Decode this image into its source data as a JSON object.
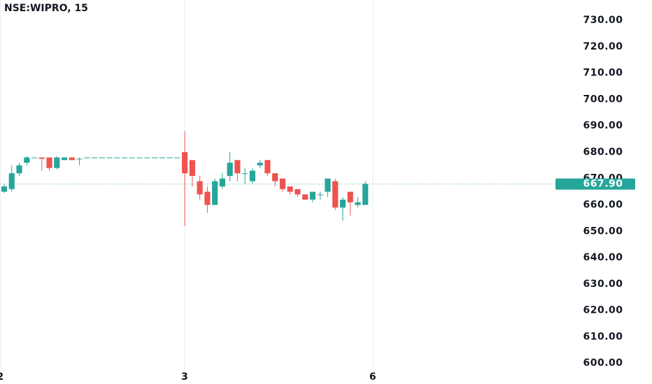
{
  "chart_data": {
    "type": "candlestick",
    "title": "NSE:WIPRO, 15",
    "up_color": "#26a69a",
    "down_color": "#ef5350",
    "x": [
      0,
      1,
      2,
      3,
      4,
      5,
      6,
      7,
      8,
      9,
      10,
      11,
      12,
      13,
      14,
      15,
      16,
      17,
      18,
      19,
      20,
      21,
      22,
      23,
      24,
      25,
      26,
      27,
      28,
      29,
      30,
      31,
      32,
      33,
      34,
      35,
      36,
      37,
      38,
      39,
      40,
      41,
      42,
      43,
      44,
      45,
      46,
      47,
      48
    ],
    "open": [
      665,
      666,
      672,
      676,
      678,
      678,
      678,
      674,
      677,
      678,
      677.5,
      678,
      678,
      678,
      678,
      678,
      678,
      678,
      678,
      678,
      678,
      678,
      678,
      678,
      680,
      677,
      669,
      665,
      660,
      667,
      671,
      677,
      672,
      669,
      675,
      677,
      672,
      670,
      667,
      666,
      664,
      662,
      664,
      665,
      669,
      659,
      665,
      660,
      660
    ],
    "high": [
      668,
      675,
      676,
      678.5,
      678,
      678,
      678,
      678.5,
      678,
      678,
      678,
      678,
      678,
      678,
      678,
      678,
      678,
      678,
      678,
      678,
      678,
      678,
      678,
      678,
      688,
      677,
      671,
      667,
      670,
      672,
      680,
      677,
      674,
      674,
      677,
      677,
      672,
      670,
      667,
      666,
      664,
      665,
      665,
      670,
      670,
      663,
      665,
      663,
      669
    ],
    "low": [
      664.5,
      665,
      671,
      675,
      678,
      673,
      673,
      673.5,
      677,
      677,
      675,
      678,
      678,
      678,
      678,
      678,
      678,
      678,
      678,
      678,
      678,
      678,
      678,
      678,
      652,
      667,
      662,
      657,
      660,
      666,
      669,
      669,
      668,
      668,
      674,
      671,
      667,
      665,
      664,
      663,
      662,
      661,
      662,
      663,
      658,
      654,
      656,
      659,
      660
    ],
    "close": [
      667,
      672,
      675,
      678,
      678,
      677.5,
      674,
      678,
      678,
      677,
      677.5,
      678,
      678,
      678,
      678,
      678,
      678,
      678,
      678,
      678,
      678,
      678,
      678,
      678,
      672,
      671,
      664,
      660,
      669,
      670,
      676,
      672,
      672,
      673,
      676,
      672,
      669,
      666,
      665,
      664,
      662,
      665,
      664,
      670,
      659,
      662,
      661,
      661,
      668
    ],
    "xlim": [
      -0.56,
      72.9
    ],
    "xticks": [
      {
        "value": -0.5,
        "label": "2"
      },
      {
        "value": 24,
        "label": "3"
      },
      {
        "value": 49,
        "label": "6"
      }
    ],
    "ylim": [
      597.4,
      737.7
    ],
    "yticks": [
      {
        "value": 600,
        "label": "600.00"
      },
      {
        "value": 610,
        "label": "610.00"
      },
      {
        "value": 620,
        "label": "620.00"
      },
      {
        "value": 630,
        "label": "630.00"
      },
      {
        "value": 640,
        "label": "640.00"
      },
      {
        "value": 650,
        "label": "650.00"
      },
      {
        "value": 660,
        "label": "660.00"
      },
      {
        "value": 670,
        "label": "670.00"
      },
      {
        "value": 680,
        "label": "680.00"
      },
      {
        "value": 690,
        "label": "690.00"
      },
      {
        "value": 700,
        "label": "700.00"
      },
      {
        "value": 710,
        "label": "710.00"
      },
      {
        "value": 720,
        "label": "720.00"
      },
      {
        "value": 730,
        "label": "730.00"
      }
    ],
    "last_price": {
      "value": 667.9,
      "label": "667.90"
    },
    "grid": true
  }
}
